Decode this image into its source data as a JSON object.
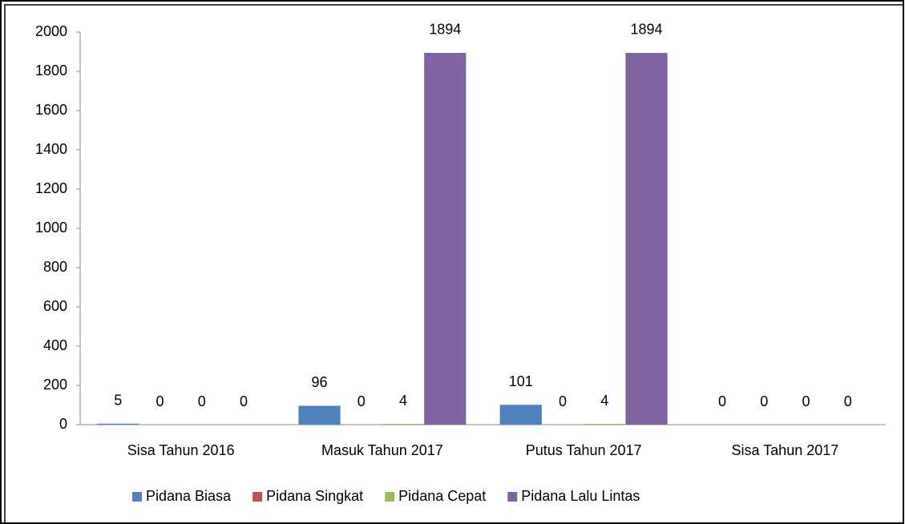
{
  "chart_data": {
    "type": "bar",
    "categories": [
      "Sisa Tahun 2016",
      "Masuk Tahun 2017",
      "Putus Tahun 2017",
      "Sisa Tahun 2017"
    ],
    "series": [
      {
        "name": "Pidana Biasa",
        "color": "#4f81bd",
        "values": [
          5,
          96,
          101,
          0
        ]
      },
      {
        "name": "Pidana Singkat",
        "color": "#c0504d",
        "values": [
          0,
          0,
          0,
          0
        ]
      },
      {
        "name": "Pidana Cepat",
        "color": "#9bbb59",
        "values": [
          0,
          4,
          4,
          0
        ]
      },
      {
        "name": "Pidana Lalu Lintas",
        "color": "#8064a2",
        "values": [
          0,
          1894,
          1894,
          0
        ]
      }
    ],
    "ylim": [
      0,
      2000
    ],
    "yticks": [
      0,
      200,
      400,
      600,
      800,
      1000,
      1200,
      1400,
      1600,
      1800,
      2000
    ],
    "grid": false,
    "legend": "bottom"
  }
}
